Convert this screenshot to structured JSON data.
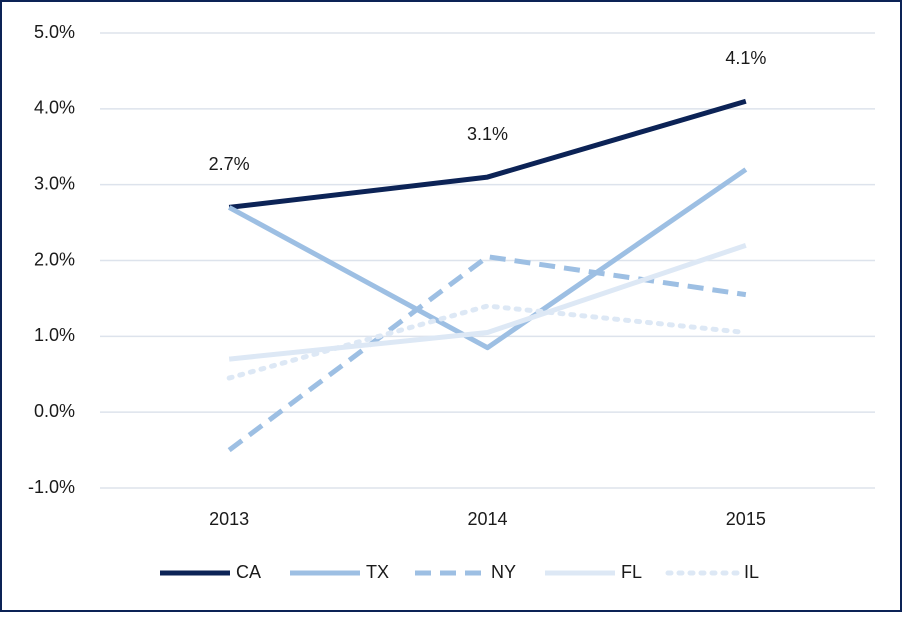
{
  "chart_data": {
    "type": "line",
    "categories": [
      "2013",
      "2014",
      "2015"
    ],
    "series": [
      {
        "name": "CA",
        "color": "#0c2356",
        "dash": "solid",
        "values": [
          2.7,
          3.1,
          4.1
        ],
        "value_labels": [
          "2.7%",
          "3.1%",
          "4.1%"
        ]
      },
      {
        "name": "TX",
        "color": "#9dbfe3",
        "dash": "solid",
        "values": [
          2.7,
          0.85,
          3.2
        ]
      },
      {
        "name": "NY",
        "color": "#9dbfe3",
        "dash": "dashed",
        "values": [
          -0.5,
          2.05,
          1.55
        ]
      },
      {
        "name": "FL",
        "color": "#dde8f5",
        "dash": "solid",
        "values": [
          0.7,
          1.05,
          2.2
        ]
      },
      {
        "name": "IL",
        "color": "#dde8f5",
        "dash": "dotted",
        "values": [
          0.45,
          1.4,
          1.05
        ]
      }
    ],
    "ylim": [
      -1,
      5
    ],
    "yticks": [
      {
        "value": -1,
        "label": "-1.0%"
      },
      {
        "value": 0,
        "label": "0.0%"
      },
      {
        "value": 1,
        "label": "1.0%"
      },
      {
        "value": 2,
        "label": "2.0%"
      },
      {
        "value": 3,
        "label": "3.0%"
      },
      {
        "value": 4,
        "label": "4.0%"
      },
      {
        "value": 5,
        "label": "5.0%"
      }
    ],
    "grid": true,
    "legend": "bottom"
  }
}
